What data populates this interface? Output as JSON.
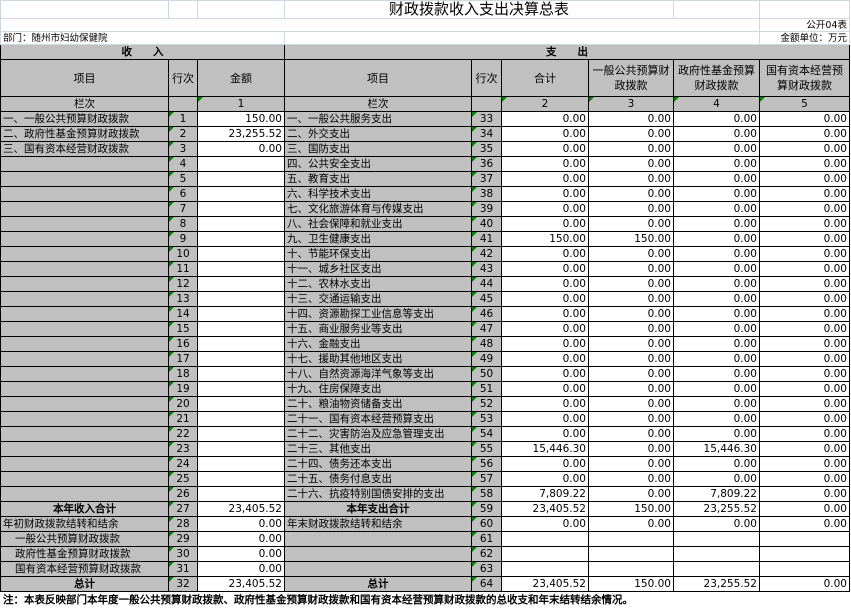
{
  "title": "财政拨款收入支出决算总表",
  "form_code": "公开04表",
  "department": "部门：随州市妇幼保健院",
  "unit": "金额单位：万元",
  "income_header": "收　　入",
  "expense_header": "支　　出",
  "columns": {
    "item": "项目",
    "line": "行次",
    "amount": "金额",
    "exp_item": "项目",
    "exp_line": "行次",
    "total": "合计",
    "general": "一般公共预算财政拨款",
    "fund": "政府性基金预算财政拨款",
    "state": "国有资本经营预算财政拨款"
  },
  "column_index": {
    "label": "栏次",
    "amount": "1",
    "exp_label": "栏次",
    "total": "2",
    "general": "3",
    "fund": "4",
    "state": "5"
  },
  "income_rows": [
    {
      "item": "一、一般公共预算财政拨款",
      "line": "1",
      "amount": "150.00"
    },
    {
      "item": "二、政府性基金预算财政拨款",
      "line": "2",
      "amount": "23,255.52"
    },
    {
      "item": "三、国有资本经营财政拨款",
      "line": "3",
      "amount": "0.00"
    },
    {
      "item": "",
      "line": "4",
      "amount": ""
    },
    {
      "item": "",
      "line": "5",
      "amount": ""
    },
    {
      "item": "",
      "line": "6",
      "amount": ""
    },
    {
      "item": "",
      "line": "7",
      "amount": ""
    },
    {
      "item": "",
      "line": "8",
      "amount": ""
    },
    {
      "item": "",
      "line": "9",
      "amount": ""
    },
    {
      "item": "",
      "line": "10",
      "amount": ""
    },
    {
      "item": "",
      "line": "11",
      "amount": ""
    },
    {
      "item": "",
      "line": "12",
      "amount": ""
    },
    {
      "item": "",
      "line": "13",
      "amount": ""
    },
    {
      "item": "",
      "line": "14",
      "amount": ""
    },
    {
      "item": "",
      "line": "15",
      "amount": ""
    },
    {
      "item": "",
      "line": "16",
      "amount": ""
    },
    {
      "item": "",
      "line": "17",
      "amount": ""
    },
    {
      "item": "",
      "line": "18",
      "amount": ""
    },
    {
      "item": "",
      "line": "19",
      "amount": ""
    },
    {
      "item": "",
      "line": "20",
      "amount": ""
    },
    {
      "item": "",
      "line": "21",
      "amount": ""
    },
    {
      "item": "",
      "line": "22",
      "amount": ""
    },
    {
      "item": "",
      "line": "23",
      "amount": ""
    },
    {
      "item": "",
      "line": "24",
      "amount": ""
    },
    {
      "item": "",
      "line": "25",
      "amount": ""
    },
    {
      "item": "",
      "line": "26",
      "amount": ""
    },
    {
      "item": "本年收入合计",
      "line": "27",
      "amount": "23,405.52",
      "bold": true
    },
    {
      "item": "年初财政拨款结转和结余",
      "line": "28",
      "amount": "0.00"
    },
    {
      "item": "一般公共预算财政拨款",
      "line": "29",
      "amount": "0.00",
      "indent": true
    },
    {
      "item": "政府性基金预算财政拨款",
      "line": "30",
      "amount": "0.00",
      "indent": true
    },
    {
      "item": "国有资本经营预算财政拨款",
      "line": "31",
      "amount": "0.00",
      "indent": true
    },
    {
      "item": "总计",
      "line": "32",
      "amount": "23,405.52",
      "bold": true
    }
  ],
  "expense_rows": [
    {
      "item": "一、一般公共服务支出",
      "line": "33",
      "total": "0.00",
      "general": "0.00",
      "fund": "0.00",
      "state": "0.00"
    },
    {
      "item": "二、外交支出",
      "line": "34",
      "total": "0.00",
      "general": "0.00",
      "fund": "0.00",
      "state": "0.00"
    },
    {
      "item": "三、国防支出",
      "line": "35",
      "total": "0.00",
      "general": "0.00",
      "fund": "0.00",
      "state": "0.00"
    },
    {
      "item": "四、公共安全支出",
      "line": "36",
      "total": "0.00",
      "general": "0.00",
      "fund": "0.00",
      "state": "0.00"
    },
    {
      "item": "五、教育支出",
      "line": "37",
      "total": "0.00",
      "general": "0.00",
      "fund": "0.00",
      "state": "0.00"
    },
    {
      "item": "六、科学技术支出",
      "line": "38",
      "total": "0.00",
      "general": "0.00",
      "fund": "0.00",
      "state": "0.00"
    },
    {
      "item": "七、文化旅游体育与传媒支出",
      "line": "39",
      "total": "0.00",
      "general": "0.00",
      "fund": "0.00",
      "state": "0.00"
    },
    {
      "item": "八、社会保障和就业支出",
      "line": "40",
      "total": "0.00",
      "general": "0.00",
      "fund": "0.00",
      "state": "0.00"
    },
    {
      "item": "九、卫生健康支出",
      "line": "41",
      "total": "150.00",
      "general": "150.00",
      "fund": "0.00",
      "state": "0.00"
    },
    {
      "item": "十、节能环保支出",
      "line": "42",
      "total": "0.00",
      "general": "0.00",
      "fund": "0.00",
      "state": "0.00"
    },
    {
      "item": "十一、城乡社区支出",
      "line": "43",
      "total": "0.00",
      "general": "0.00",
      "fund": "0.00",
      "state": "0.00"
    },
    {
      "item": "十二、农林水支出",
      "line": "44",
      "total": "0.00",
      "general": "0.00",
      "fund": "0.00",
      "state": "0.00"
    },
    {
      "item": "十三、交通运输支出",
      "line": "45",
      "total": "0.00",
      "general": "0.00",
      "fund": "0.00",
      "state": "0.00"
    },
    {
      "item": "十四、资源勘探工业信息等支出",
      "line": "46",
      "total": "0.00",
      "general": "0.00",
      "fund": "0.00",
      "state": "0.00"
    },
    {
      "item": "十五、商业服务业等支出",
      "line": "47",
      "total": "0.00",
      "general": "0.00",
      "fund": "0.00",
      "state": "0.00"
    },
    {
      "item": "十六、金融支出",
      "line": "48",
      "total": "0.00",
      "general": "0.00",
      "fund": "0.00",
      "state": "0.00"
    },
    {
      "item": "十七、援助其他地区支出",
      "line": "49",
      "total": "0.00",
      "general": "0.00",
      "fund": "0.00",
      "state": "0.00"
    },
    {
      "item": "十八、自然资源海洋气象等支出",
      "line": "50",
      "total": "0.00",
      "general": "0.00",
      "fund": "0.00",
      "state": "0.00"
    },
    {
      "item": "十九、住房保障支出",
      "line": "51",
      "total": "0.00",
      "general": "0.00",
      "fund": "0.00",
      "state": "0.00"
    },
    {
      "item": "二十、粮油物资储备支出",
      "line": "52",
      "total": "0.00",
      "general": "0.00",
      "fund": "0.00",
      "state": "0.00"
    },
    {
      "item": "二十一、国有资本经营预算支出",
      "line": "53",
      "total": "0.00",
      "general": "0.00",
      "fund": "0.00",
      "state": "0.00"
    },
    {
      "item": "二十二、灾害防治及应急管理支出",
      "line": "54",
      "total": "0.00",
      "general": "0.00",
      "fund": "0.00",
      "state": "0.00"
    },
    {
      "item": "二十三、其他支出",
      "line": "55",
      "total": "15,446.30",
      "general": "0.00",
      "fund": "15,446.30",
      "state": "0.00"
    },
    {
      "item": "二十四、债务还本支出",
      "line": "56",
      "total": "0.00",
      "general": "0.00",
      "fund": "0.00",
      "state": "0.00"
    },
    {
      "item": "二十五、债务付息支出",
      "line": "57",
      "total": "0.00",
      "general": "0.00",
      "fund": "0.00",
      "state": "0.00"
    },
    {
      "item": "二十六、抗疫特别国债安排的支出",
      "line": "58",
      "total": "7,809.22",
      "general": "0.00",
      "fund": "7,809.22",
      "state": "0.00"
    },
    {
      "item": "本年支出合计",
      "line": "59",
      "total": "23,405.52",
      "general": "150.00",
      "fund": "23,255.52",
      "state": "0.00",
      "bold": true
    },
    {
      "item": "年末财政拨款结转和结余",
      "line": "60",
      "total": "0.00",
      "general": "0.00",
      "fund": "0.00",
      "state": "0.00"
    },
    {
      "item": "",
      "line": "61",
      "total": "",
      "general": "",
      "fund": "",
      "state": ""
    },
    {
      "item": "",
      "line": "62",
      "total": "",
      "general": "",
      "fund": "",
      "state": ""
    },
    {
      "item": "",
      "line": "63",
      "total": "",
      "general": "",
      "fund": "",
      "state": ""
    },
    {
      "item": "总计",
      "line": "64",
      "total": "23,405.52",
      "general": "150.00",
      "fund": "23,255.52",
      "state": "0.00",
      "bold": true
    }
  ],
  "note": "注：本表反映部门本年度一般公共预算财政拨款、政府性基金预算财政拨款和国有资本经营预算财政拨款的总收支和年末结转结余情况。",
  "colors": {
    "header_gray": "#c0c0c0",
    "marker_green": "#008000",
    "gridline": "#d0d7e5"
  }
}
